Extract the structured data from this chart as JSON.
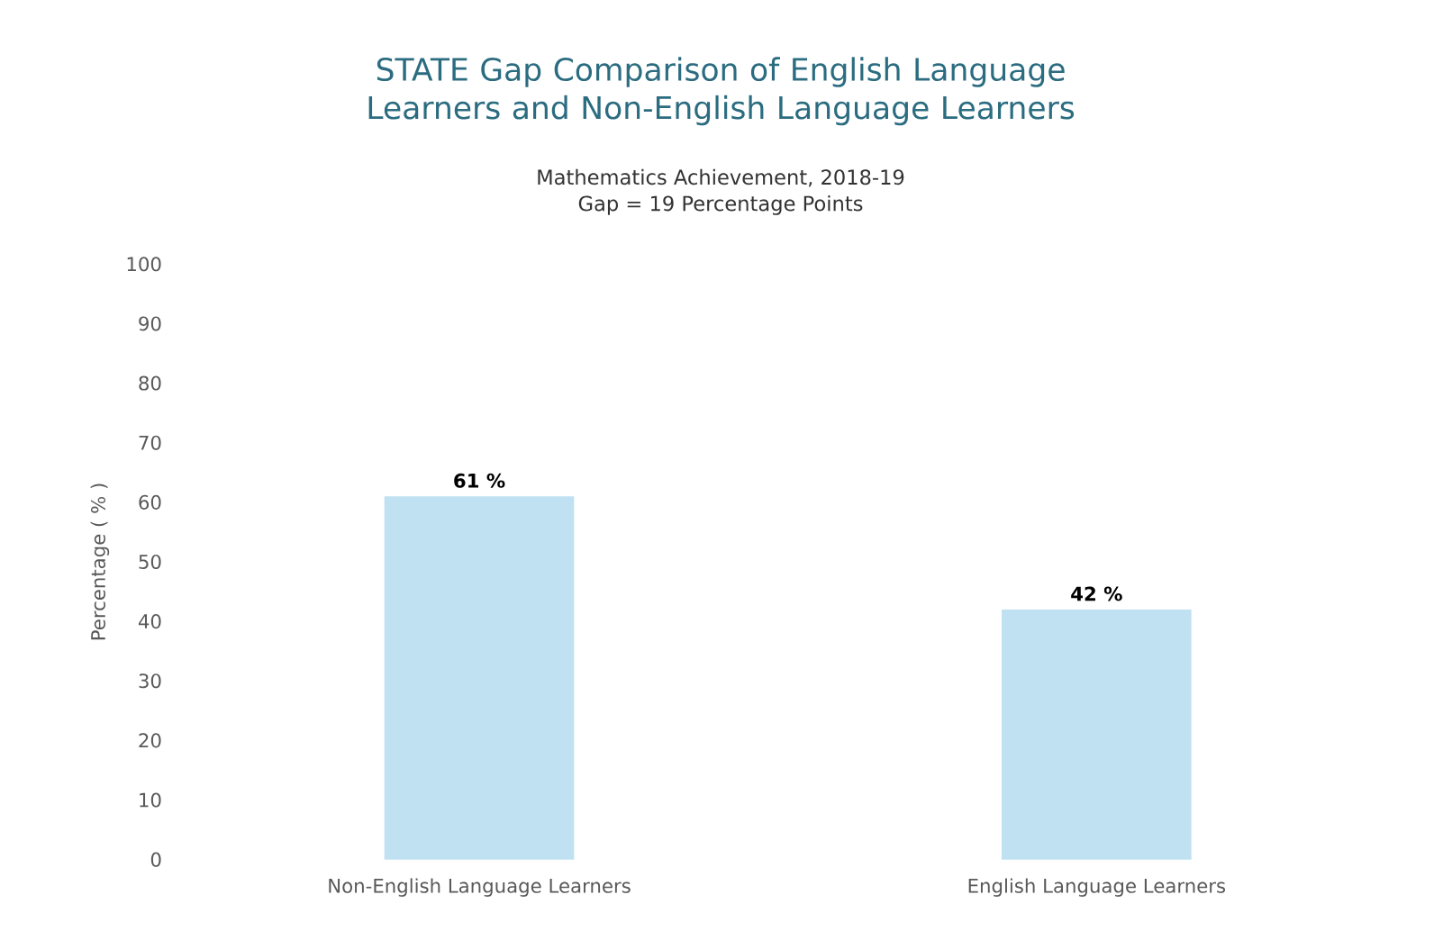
{
  "chart_data": {
    "type": "bar",
    "title": "STATE Gap Comparison of English Language Learners and Non-English Language Learners",
    "subtitle": "Mathematics Achievement, 2018-19",
    "annotations": [
      "Gap = 19 Percentage Points"
    ],
    "ylabel": "Percentage ( % )",
    "categories": [
      "Non-English Language Learners",
      "English Language Learners"
    ],
    "values": [
      61,
      42
    ],
    "value_labels": [
      "61 %",
      "42 %"
    ],
    "color": "#bfe1f2",
    "ylim": [
      0,
      100
    ],
    "yticks": [
      0,
      10,
      20,
      30,
      40,
      50,
      60,
      70,
      80,
      90,
      100
    ],
    "grid": false
  }
}
